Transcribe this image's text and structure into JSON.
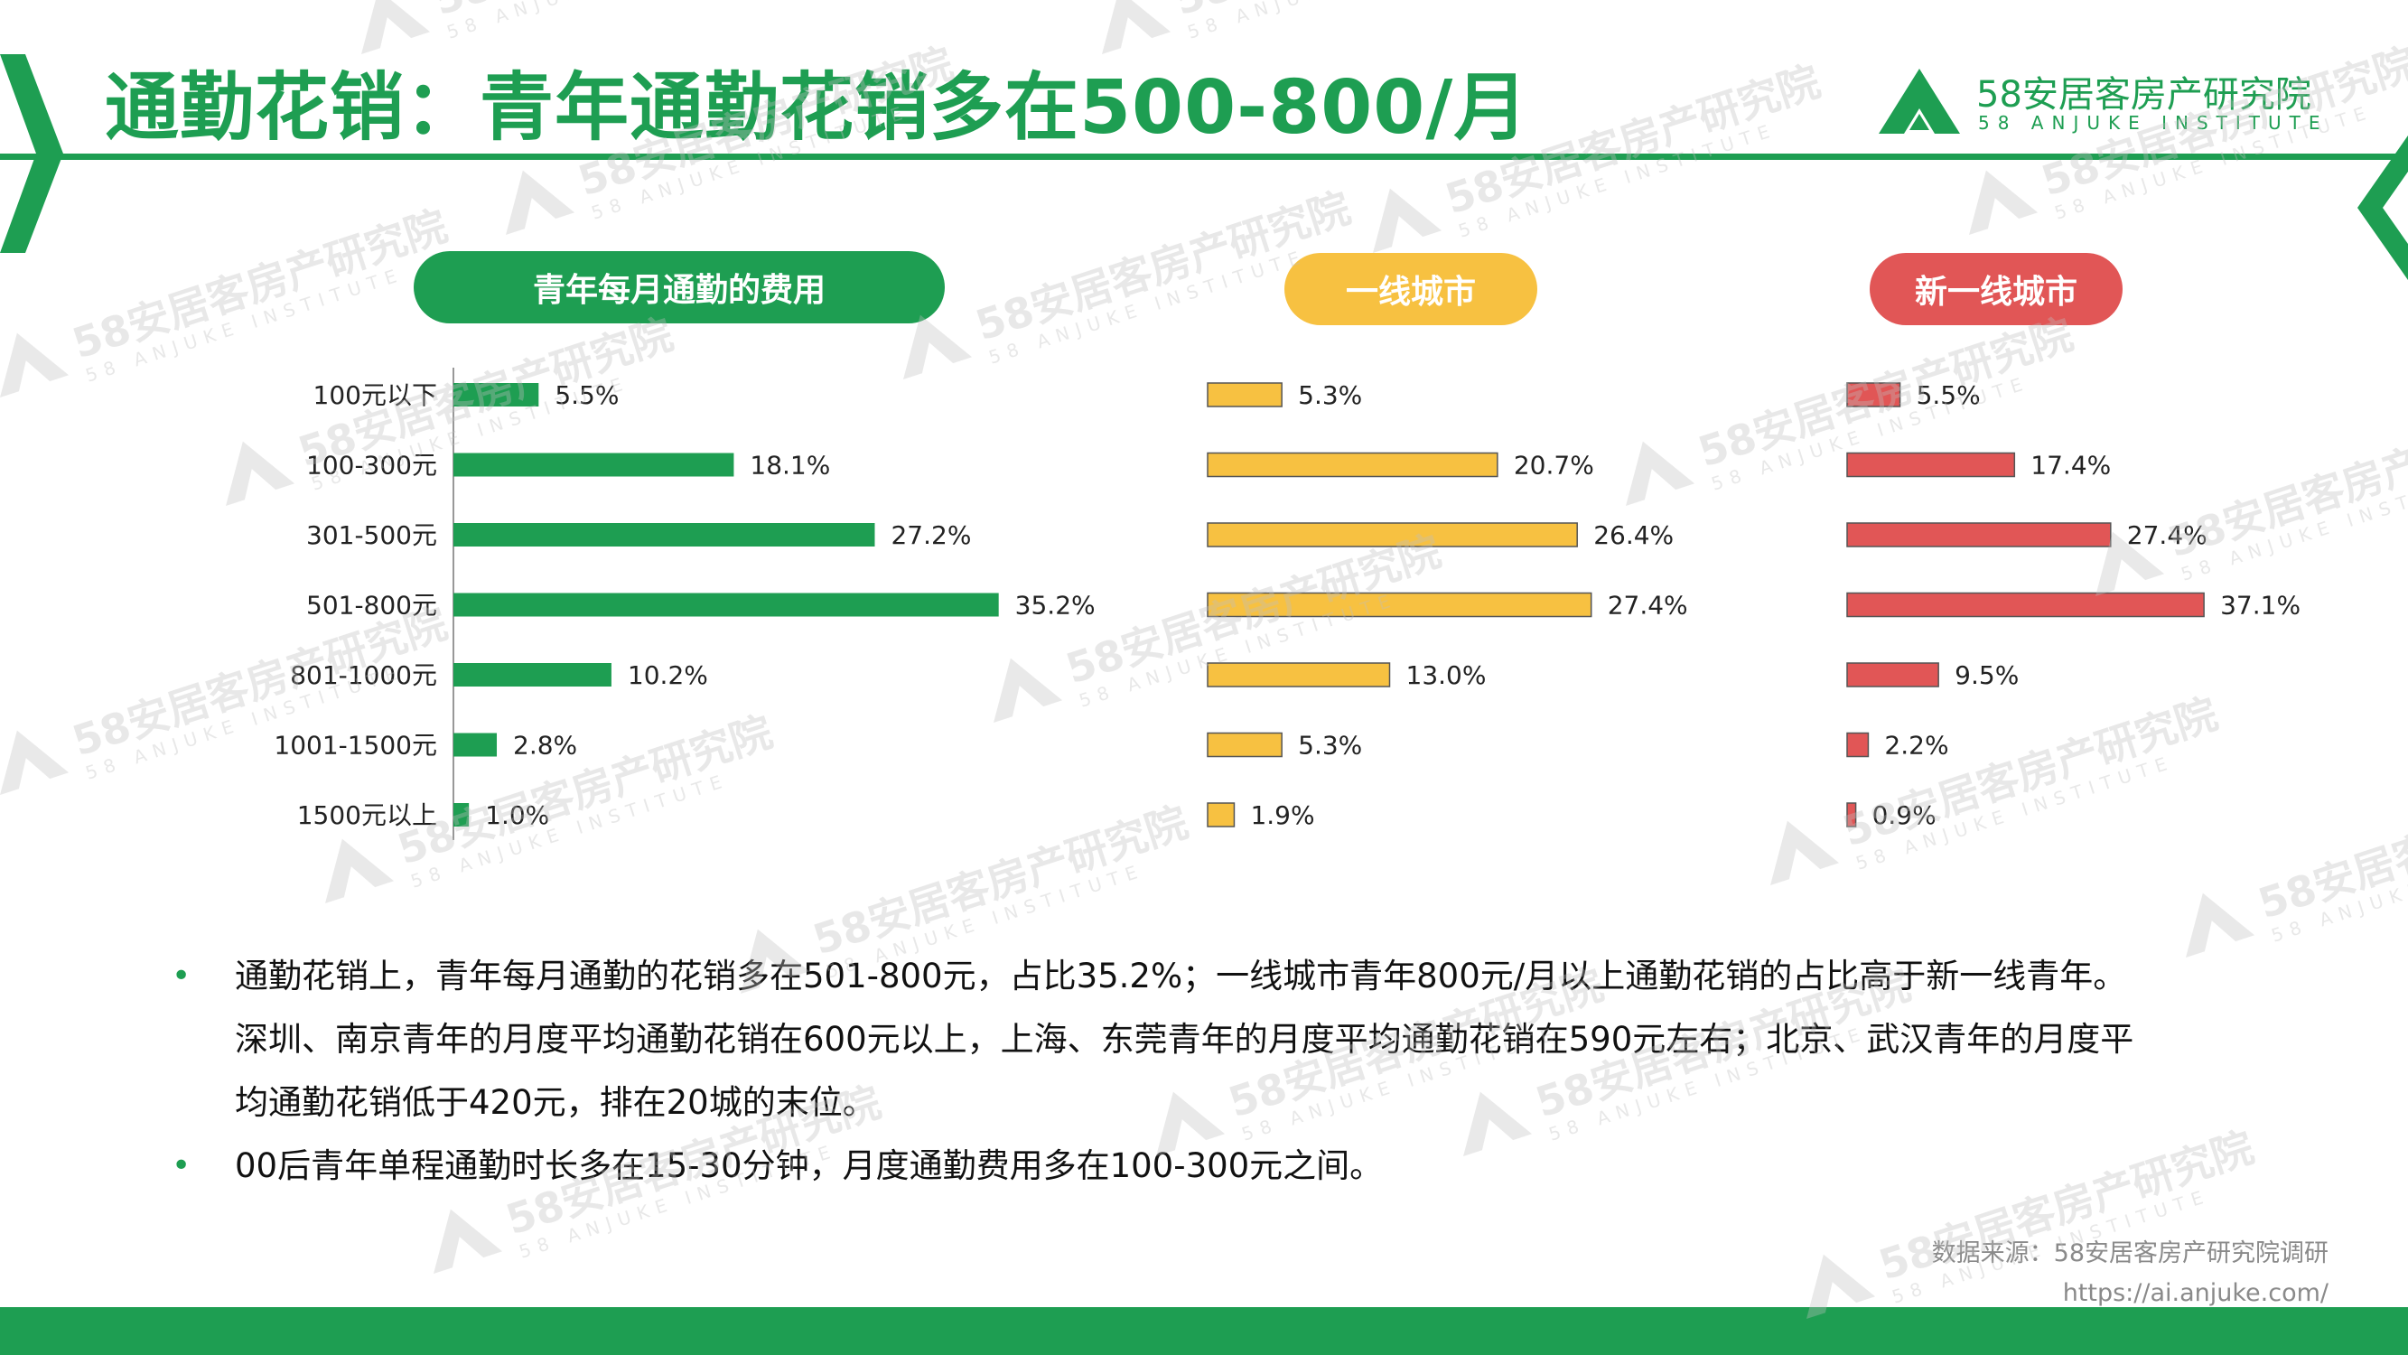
{
  "header": {
    "title": "通勤花销：青年通勤花销多在500-800/月",
    "logo_name": "58安居客房产研究院",
    "logo_sub": "58 ANJUKE INSTITUTE"
  },
  "colors": {
    "brand_green": "#1e9e52",
    "tier1_yellow": "#f7c141",
    "new_tier1_red": "#e15656"
  },
  "chart_data": [
    {
      "type": "bar",
      "orientation": "horizontal",
      "title": "青年每月通勤的费用",
      "categories": [
        "100元以下",
        "100-300元",
        "301-500元",
        "501-800元",
        "801-1000元",
        "1001-1500元",
        "1500元以上"
      ],
      "values": [
        5.5,
        18.1,
        27.2,
        35.2,
        10.2,
        2.8,
        1.0
      ],
      "labels": [
        "5.5%",
        "18.1%",
        "27.2%",
        "35.2%",
        "10.2%",
        "2.8%",
        "1.0%"
      ],
      "unit": "%",
      "color": "#1e9e52"
    },
    {
      "type": "bar",
      "orientation": "horizontal",
      "title": "一线城市",
      "categories": [
        "100元以下",
        "100-300元",
        "301-500元",
        "501-800元",
        "801-1000元",
        "1001-1500元",
        "1500元以上"
      ],
      "values": [
        5.3,
        20.7,
        26.4,
        27.4,
        13.0,
        5.3,
        1.9
      ],
      "labels": [
        "5.3%",
        "20.7%",
        "26.4%",
        "27.4%",
        "13.0%",
        "5.3%",
        "1.9%"
      ],
      "unit": "%",
      "color": "#f7c141"
    },
    {
      "type": "bar",
      "orientation": "horizontal",
      "title": "新一线城市",
      "categories": [
        "100元以下",
        "100-300元",
        "301-500元",
        "501-800元",
        "801-1000元",
        "1001-1500元",
        "1500元以上"
      ],
      "values": [
        5.5,
        17.4,
        27.4,
        37.1,
        9.5,
        2.2,
        0.9
      ],
      "labels": [
        "5.5%",
        "17.4%",
        "27.4%",
        "37.1%",
        "9.5%",
        "2.2%",
        "0.9%"
      ],
      "unit": "%",
      "color": "#e15656"
    }
  ],
  "summary": {
    "bullets": [
      "通勤花销上，青年每月通勤的花销多在501-800元，占比35.2%；一线城市青年800元/月以上通勤花销的占比高于新一线青年。深圳、南京青年的月度平均通勤花销在600元以上，上海、东莞青年的月度平均通勤花销在590元左右；北京、武汉青年的月度平均通勤花销低于420元，排在20城的末位。",
      "00后青年单程通勤时长多在15-30分钟，月度通勤费用多在100-300元之间。"
    ],
    "bullet_glyph": "•"
  },
  "source": {
    "line1": "数据来源：58安居客房产研究院调研",
    "line2": "https://ai.anjuke.com/"
  }
}
